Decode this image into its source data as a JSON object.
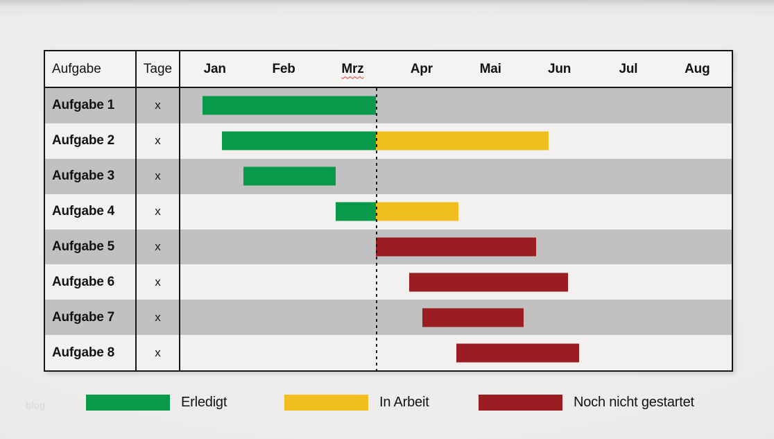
{
  "page": {
    "watermark": "blog"
  },
  "table": {
    "task_header": "Aufgabe",
    "tage_header": "Tage"
  },
  "legend": [
    {
      "label": "Erledigt",
      "color_key": "done"
    },
    {
      "label": "In Arbeit",
      "color_key": "in_progress"
    },
    {
      "label": "Noch nicht gestartet",
      "color_key": "not_started"
    }
  ],
  "colors": {
    "done": "#089a4a",
    "in_progress": "#f0be1f",
    "not_started": "#9a1d22",
    "row_alt": "#c1c1c1",
    "row_light": "#f2f1ef",
    "border": "#161616"
  },
  "chart_data": {
    "type": "bar",
    "variant": "gantt",
    "title": "",
    "x_axis": {
      "unit": "month",
      "categories": [
        "Jan",
        "Feb",
        "Mrz",
        "Apr",
        "Mai",
        "Jun",
        "Jul",
        "Aug"
      ],
      "range": [
        0,
        8
      ],
      "spellcheck_underline_index": 2
    },
    "status_line_month": 2.84,
    "legend_position": "bottom",
    "grid": false,
    "tasks": [
      {
        "label": "Aufgabe 1",
        "tage": "x",
        "bars": [
          {
            "status": "erledigt",
            "start": 0.32,
            "end": 2.84
          }
        ]
      },
      {
        "label": "Aufgabe 2",
        "tage": "x",
        "bars": [
          {
            "status": "erledigt",
            "start": 0.6,
            "end": 2.84
          },
          {
            "status": "in_arbeit",
            "start": 2.84,
            "end": 5.34
          }
        ]
      },
      {
        "label": "Aufgabe 3",
        "tage": "x",
        "bars": [
          {
            "status": "erledigt",
            "start": 0.92,
            "end": 2.25
          }
        ]
      },
      {
        "label": "Aufgabe 4",
        "tage": "x",
        "bars": [
          {
            "status": "erledigt",
            "start": 2.25,
            "end": 2.84
          },
          {
            "status": "in_arbeit",
            "start": 2.84,
            "end": 4.04
          }
        ]
      },
      {
        "label": "Aufgabe 5",
        "tage": "x",
        "bars": [
          {
            "status": "nicht_gestartet",
            "start": 2.84,
            "end": 5.16
          }
        ]
      },
      {
        "label": "Aufgabe 6",
        "tage": "x",
        "bars": [
          {
            "status": "nicht_gestartet",
            "start": 3.32,
            "end": 5.63
          }
        ]
      },
      {
        "label": "Aufgabe 7",
        "tage": "x",
        "bars": [
          {
            "status": "nicht_gestartet",
            "start": 3.51,
            "end": 4.98
          }
        ]
      },
      {
        "label": "Aufgabe 8",
        "tage": "x",
        "bars": [
          {
            "status": "nicht_gestartet",
            "start": 4.0,
            "end": 5.79
          }
        ]
      }
    ]
  }
}
